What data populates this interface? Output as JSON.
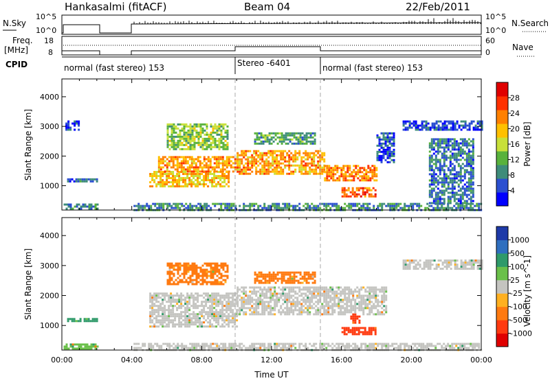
{
  "header": {
    "station": "Hankasalmi (fitACF)",
    "beam": "Beam 04",
    "date": "22/Feb/2011"
  },
  "top_panels": {
    "nsky_label": "N.Sky",
    "nsky_ticks": [
      "10^5",
      "10^0"
    ],
    "nsearch_label": "N.Search",
    "nsearch_ticks": [
      "10^5",
      "10^0"
    ],
    "freq_label": "Freq.",
    "freq_unit": "[MHz]",
    "freq_ticks": [
      "18",
      "8"
    ],
    "nave_label": "Nave",
    "nave_ticks": [
      "60",
      "0"
    ],
    "cpid_label": "CPID",
    "cpid_segments": [
      {
        "label": "normal (fast stereo) 153",
        "start": 0,
        "end": 10
      },
      {
        "label": "Stereo -6401",
        "start": 10,
        "end": 15
      },
      {
        "label": "normal (fast stereo) 153",
        "start": 15,
        "end": 24
      }
    ]
  },
  "colors": {
    "power": [
      "#0000ff",
      "#2b4fd0",
      "#3e8c7a",
      "#59b23c",
      "#c8e03a",
      "#ffc000",
      "#ff8000",
      "#ff3000",
      "#e00000"
    ],
    "velocity": [
      "#1e3aa8",
      "#2f6fbf",
      "#2f9a6a",
      "#6ac04a",
      "#c4c4c0",
      "#ffb020",
      "#ff7a10",
      "#ff3a10",
      "#e00000"
    ]
  },
  "chart_data": [
    {
      "type": "heatmap",
      "name": "power",
      "ylabel": "Slant Range [km]",
      "xlabel": "",
      "x_ticks": [],
      "y_ticks": [
        "1000",
        "2000",
        "3000",
        "4000"
      ],
      "xlim": [
        0,
        24
      ],
      "ylim": [
        180,
        4600
      ],
      "colorbar": {
        "label": "Power [dB]",
        "ticks": [
          "4",
          "8",
          "12",
          "16",
          "20",
          "24",
          "28"
        ],
        "range": [
          0,
          32
        ]
      },
      "regions": [
        {
          "t": [
            0.1,
            2.0
          ],
          "r": [
            200,
            400
          ],
          "value": 8
        },
        {
          "t": [
            0.2,
            1.0
          ],
          "r": [
            2900,
            3200
          ],
          "value": 4
        },
        {
          "t": [
            0.3,
            2.0
          ],
          "r": [
            1150,
            1250
          ],
          "value": 6
        },
        {
          "t": [
            4.1,
            24.0
          ],
          "r": [
            200,
            420
          ],
          "value": 8
        },
        {
          "t": [
            5.0,
            9.6
          ],
          "r": [
            1000,
            1500
          ],
          "value": 20
        },
        {
          "t": [
            5.5,
            10.0
          ],
          "r": [
            1500,
            2000
          ],
          "value": 22
        },
        {
          "t": [
            6.0,
            9.5
          ],
          "r": [
            2200,
            3100
          ],
          "value": 14
        },
        {
          "t": [
            10.0,
            15.0
          ],
          "r": [
            1400,
            2200
          ],
          "value": 22
        },
        {
          "t": [
            11.0,
            14.5
          ],
          "r": [
            2400,
            2800
          ],
          "value": 10
        },
        {
          "t": [
            15.0,
            18.0
          ],
          "r": [
            1150,
            1700
          ],
          "value": 24
        },
        {
          "t": [
            16.0,
            18.0
          ],
          "r": [
            650,
            950
          ],
          "value": 26
        },
        {
          "t": [
            18.0,
            19.0
          ],
          "r": [
            1800,
            2800
          ],
          "value": 4
        },
        {
          "t": [
            19.5,
            24.0
          ],
          "r": [
            2900,
            3200
          ],
          "value": 4
        },
        {
          "t": [
            21.0,
            23.5
          ],
          "r": [
            400,
            2600
          ],
          "value": 6
        }
      ]
    },
    {
      "type": "heatmap",
      "name": "velocity",
      "ylabel": "Slant Range [km]",
      "xlabel": "Time UT",
      "x_ticks": [
        "00:00",
        "04:00",
        "08:00",
        "12:00",
        "16:00",
        "20:00",
        "00:00"
      ],
      "y_ticks": [
        "1000",
        "2000",
        "3000",
        "4000"
      ],
      "xlim": [
        0,
        24
      ],
      "ylim": [
        180,
        4600
      ],
      "colorbar": {
        "label": "Velocity [m s^-1]",
        "ticks": [
          "1000",
          "500",
          "100",
          "25",
          "-25",
          "-100",
          "-500",
          "-1000"
        ]
      },
      "regions": [
        {
          "t": [
            0.1,
            2.0
          ],
          "r": [
            200,
            400
          ],
          "value": 25
        },
        {
          "t": [
            0.3,
            2.0
          ],
          "r": [
            1150,
            1250
          ],
          "value": 100
        },
        {
          "t": [
            4.1,
            24.0
          ],
          "r": [
            200,
            420
          ],
          "value": 0
        },
        {
          "t": [
            5.0,
            10.0
          ],
          "r": [
            1000,
            2100
          ],
          "value": 0
        },
        {
          "t": [
            10.0,
            18.5
          ],
          "r": [
            1400,
            2300
          ],
          "value": 0
        },
        {
          "t": [
            6.0,
            9.5
          ],
          "r": [
            2400,
            3100
          ],
          "value": -100
        },
        {
          "t": [
            11.0,
            14.5
          ],
          "r": [
            2400,
            2800
          ],
          "value": -100
        },
        {
          "t": [
            16.0,
            18.0
          ],
          "r": [
            700,
            950
          ],
          "value": -500
        },
        {
          "t": [
            16.5,
            17.0
          ],
          "r": [
            1100,
            1400
          ],
          "value": -500
        },
        {
          "t": [
            19.5,
            24.0
          ],
          "r": [
            2900,
            3200
          ],
          "value": 0
        }
      ]
    }
  ]
}
